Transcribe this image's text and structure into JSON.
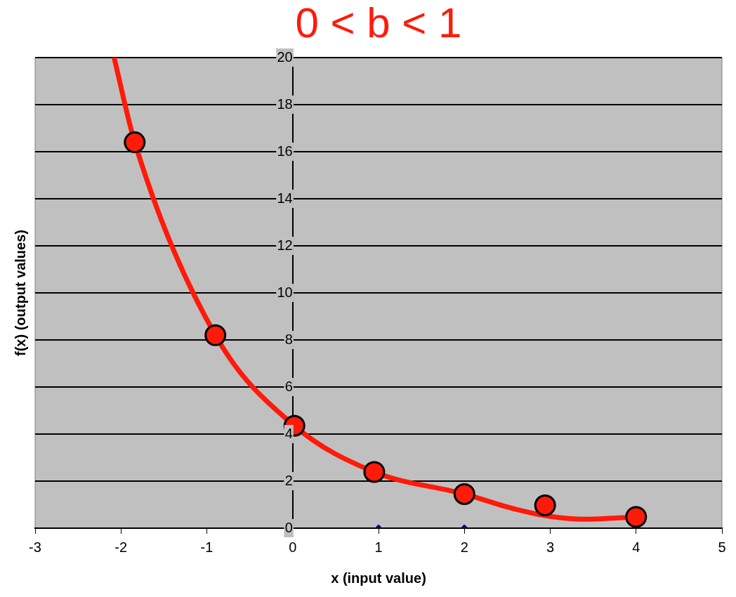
{
  "chart_data": {
    "type": "scatter",
    "title": "0 < b < 1",
    "xlabel": "x (input value)",
    "ylabel": "f(x) (output values)",
    "xlim": [
      -3,
      5
    ],
    "xticks": [
      -3,
      -2,
      -1,
      0,
      1,
      2,
      3,
      4,
      5
    ],
    "ylim": [
      0,
      20
    ],
    "yticks": [
      0,
      2,
      4,
      6,
      8,
      10,
      12,
      14,
      16,
      18,
      20
    ],
    "grid": "y",
    "legend": false,
    "series": [
      {
        "type": "line",
        "color": "#ff1a0a",
        "marker": "none",
        "x": [
          -2.08,
          -1.84,
          -0.9,
          0.02,
          0.95,
          2.0,
          2.6,
          3.0,
          3.4,
          4.0
        ],
        "values": [
          20,
          16.4,
          8.2,
          4.35,
          2.39,
          1.45,
          0.8,
          0.5,
          0.38,
          0.48
        ]
      },
      {
        "type": "scatter",
        "color": "#ff1a0a",
        "marker": "circle",
        "x": [
          -1.84,
          -0.9,
          0.02,
          0.95,
          2.0,
          2.94,
          4.0
        ],
        "values": [
          16.4,
          8.2,
          4.35,
          2.39,
          1.45,
          0.97,
          0.48
        ]
      },
      {
        "type": "scatter",
        "color": "#000080",
        "marker": "diamond",
        "x": [
          1,
          2
        ],
        "values": [
          0,
          0
        ]
      }
    ]
  }
}
